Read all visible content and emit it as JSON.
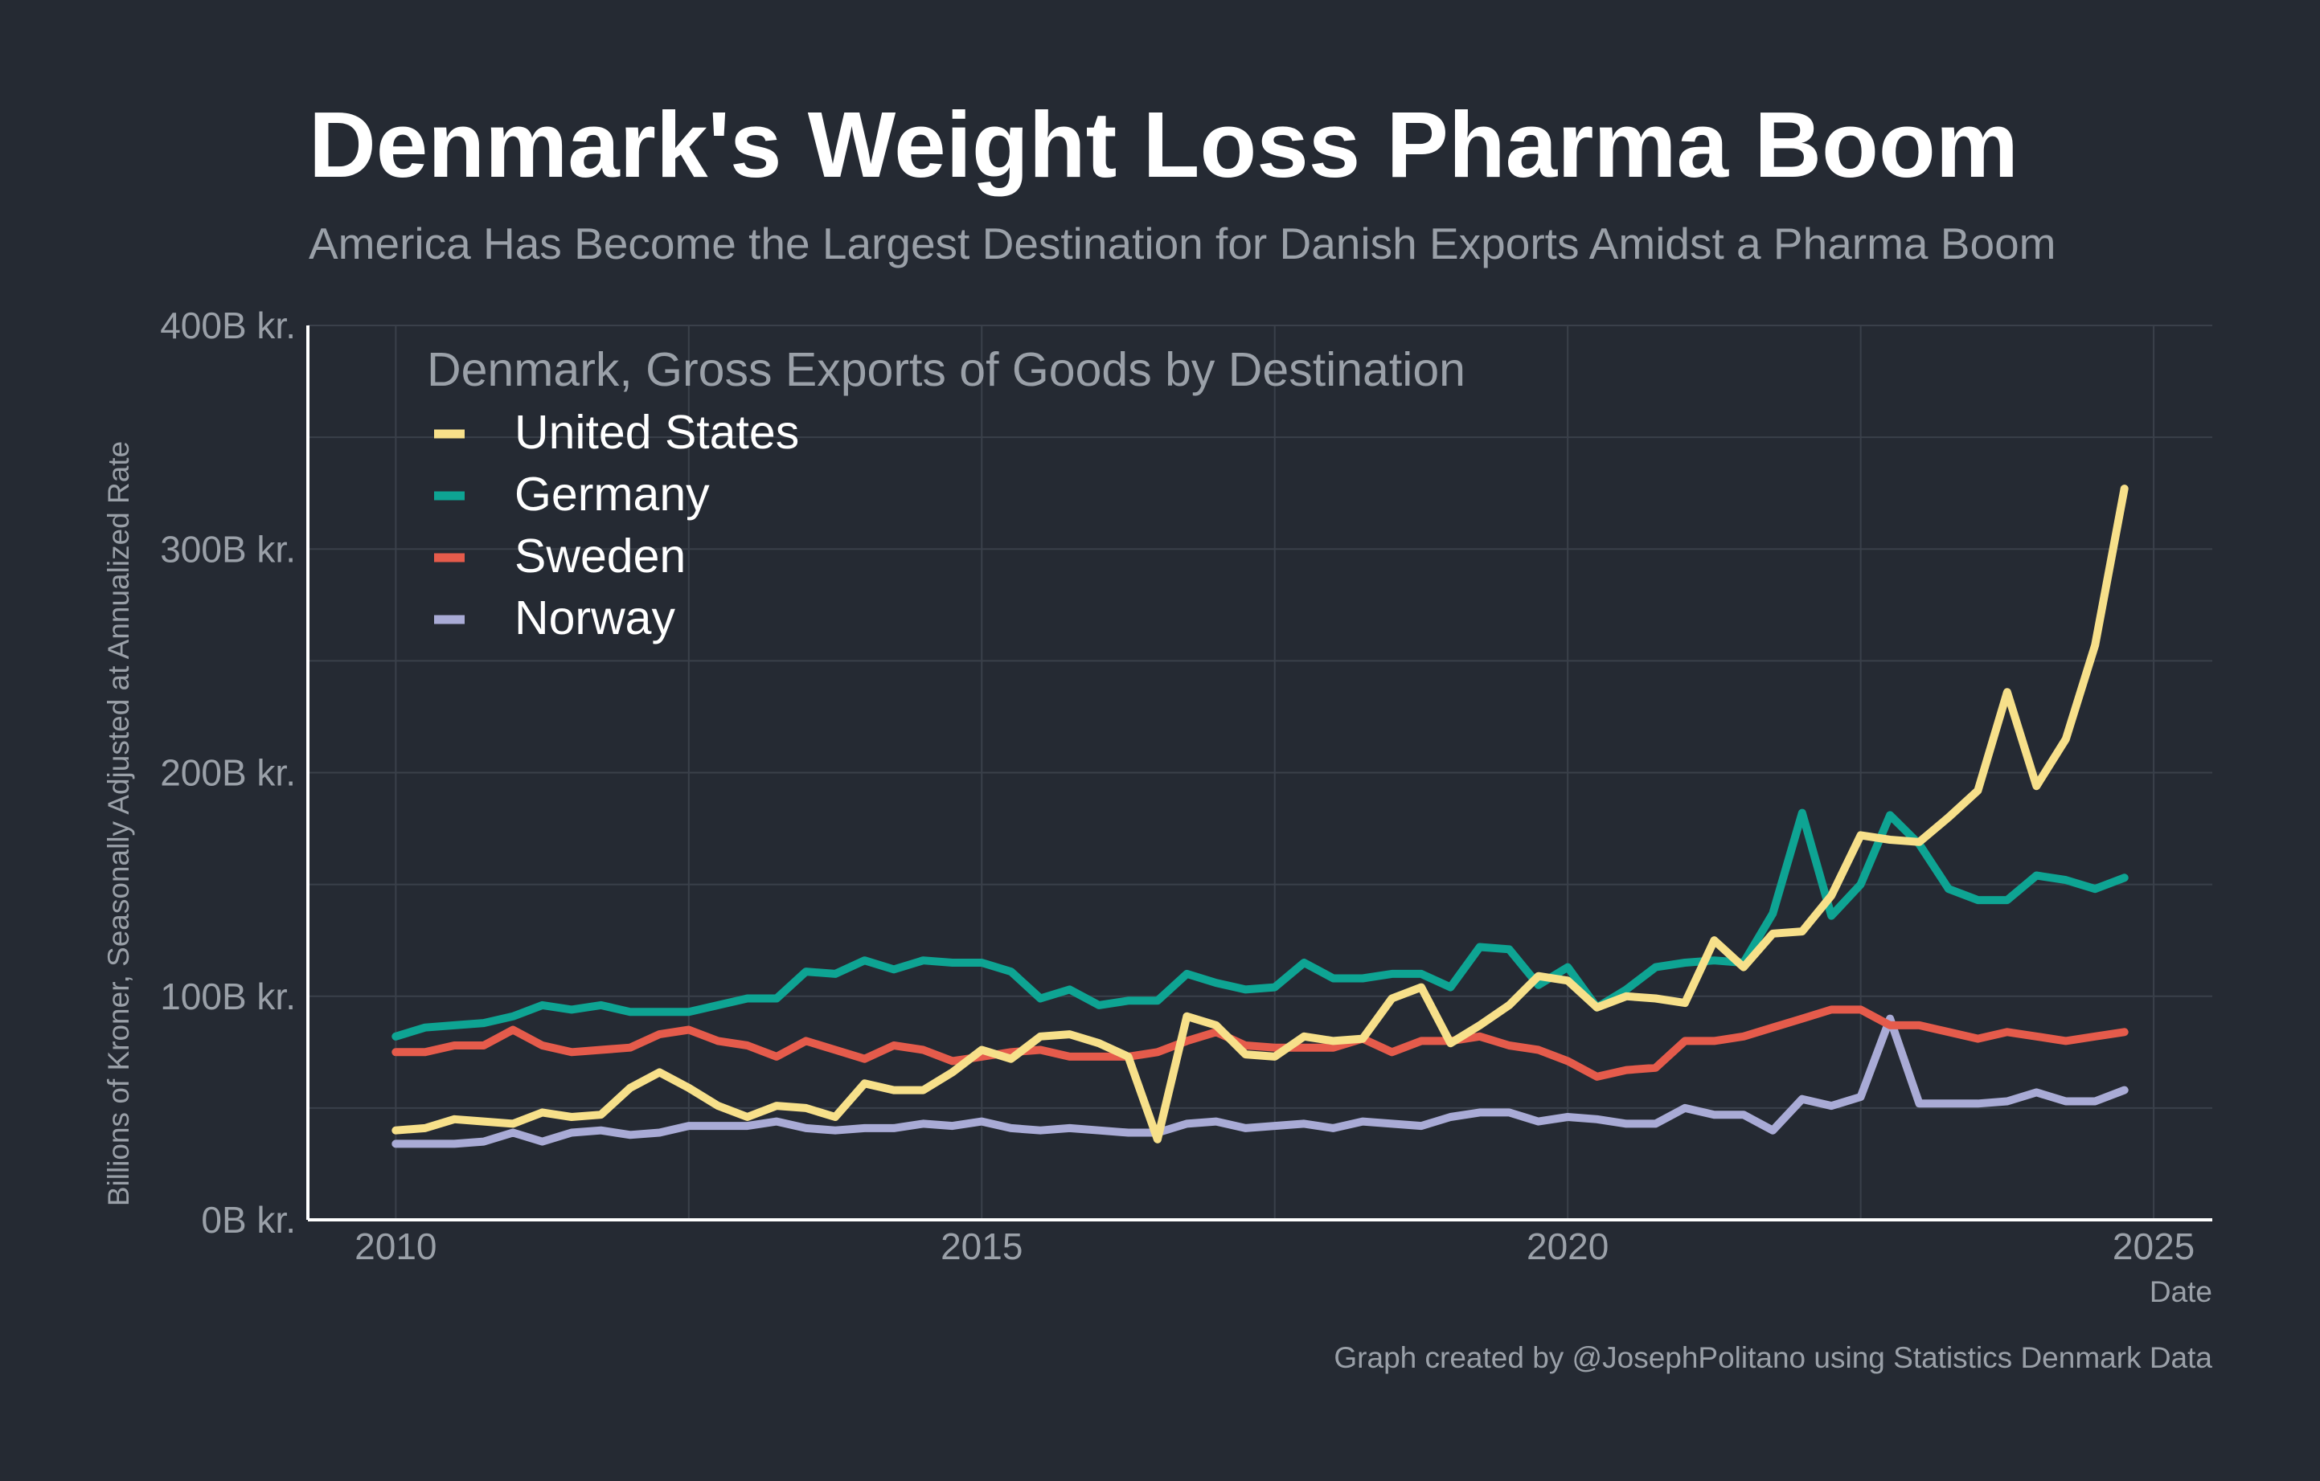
{
  "chart_data": {
    "type": "line",
    "title": "Denmark's Weight Loss Pharma Boom",
    "subtitle": "America Has Become the Largest Destination for Danish Exports Amidst a Pharma Boom",
    "legend_title": "Denmark, Gross Exports of Goods by Destination",
    "ylabel": "Billions of Kroner, Seasonally Adjusted at Annualized Rate",
    "xlabel": "Date",
    "caption": "Graph created by @JosephPolitano using Statistics Denmark Data",
    "xlim": [
      2009.25,
      2025.5
    ],
    "ylim": [
      0,
      400
    ],
    "x_start": 2010.0,
    "x_step": 0.25,
    "x_ticks": [
      2010,
      2015,
      2020,
      2025
    ],
    "x_tick_labels": [
      "2010",
      "2015",
      "2020",
      "2025"
    ],
    "y_ticks": [
      0,
      100,
      200,
      300,
      400
    ],
    "y_tick_labels": [
      "0B kr.",
      "100B kr.",
      "200B kr.",
      "300B kr.",
      "400B kr."
    ],
    "grid": true,
    "legend_position": "top-left",
    "series": [
      {
        "name": "United States",
        "color": "#f7e08a",
        "values": [
          40,
          41,
          45,
          44,
          43,
          48,
          46,
          47,
          59,
          66,
          59,
          51,
          46,
          51,
          50,
          46,
          61,
          58,
          58,
          66,
          76,
          72,
          82,
          83,
          79,
          73,
          36,
          91,
          87,
          74,
          73,
          82,
          80,
          81,
          99,
          104,
          79,
          87,
          96,
          109,
          107,
          95,
          100,
          99,
          97,
          125,
          113,
          128,
          129,
          145,
          172,
          170,
          169,
          180,
          192,
          236,
          194,
          215,
          257,
          327
        ]
      },
      {
        "name": "Germany",
        "color": "#0ea493",
        "values": [
          82,
          86,
          87,
          88,
          91,
          96,
          94,
          96,
          93,
          93,
          93,
          96,
          99,
          99,
          111,
          110,
          116,
          112,
          116,
          115,
          115,
          111,
          99,
          103,
          96,
          98,
          98,
          110,
          106,
          103,
          104,
          115,
          108,
          108,
          110,
          110,
          104,
          122,
          121,
          105,
          113,
          95,
          103,
          113,
          115,
          116,
          115,
          137,
          182,
          136,
          150,
          181,
          168,
          148,
          143,
          143,
          154,
          152,
          148,
          153
        ]
      },
      {
        "name": "Sweden",
        "color": "#e55b4b",
        "values": [
          75,
          75,
          78,
          78,
          85,
          78,
          75,
          76,
          77,
          83,
          85,
          80,
          78,
          73,
          80,
          76,
          72,
          78,
          76,
          71,
          73,
          75,
          76,
          73,
          73,
          73,
          75,
          80,
          84,
          78,
          77,
          77,
          77,
          81,
          75,
          80,
          80,
          82,
          78,
          76,
          71,
          64,
          67,
          68,
          80,
          80,
          82,
          86,
          90,
          94,
          94,
          87,
          87,
          84,
          81,
          84,
          82,
          80,
          82,
          84
        ]
      },
      {
        "name": "Norway",
        "color": "#a9abd6",
        "values": [
          34,
          34,
          34,
          35,
          39,
          35,
          39,
          40,
          38,
          39,
          42,
          42,
          42,
          44,
          41,
          40,
          41,
          41,
          43,
          42,
          44,
          41,
          40,
          41,
          40,
          39,
          39,
          43,
          44,
          41,
          42,
          43,
          41,
          44,
          43,
          42,
          46,
          48,
          48,
          44,
          46,
          45,
          43,
          43,
          50,
          47,
          47,
          40,
          54,
          51,
          55,
          90,
          52,
          52,
          52,
          53,
          57,
          53,
          53,
          58
        ]
      }
    ]
  }
}
